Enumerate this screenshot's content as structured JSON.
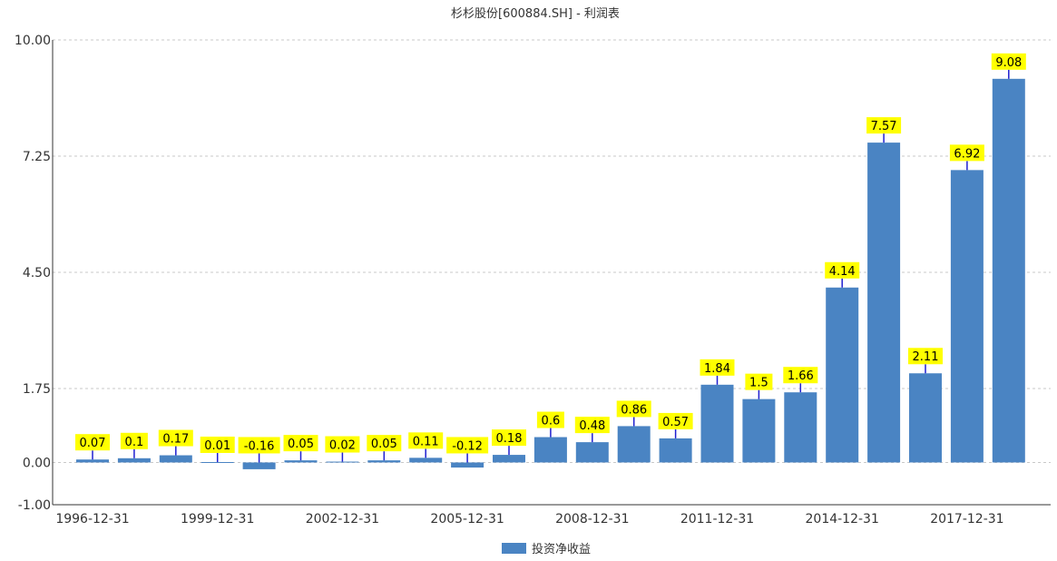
{
  "chart_data": {
    "type": "bar",
    "title": "杉杉股份[600884.SH] - 利润表",
    "series": [
      {
        "name": "投资净收益",
        "color": "#4a84c3",
        "values": [
          0.07,
          0.1,
          0.17,
          0.01,
          -0.16,
          0.05,
          0.02,
          0.05,
          0.11,
          -0.12,
          0.18,
          0.6,
          0.48,
          0.86,
          0.57,
          1.84,
          1.5,
          1.66,
          4.14,
          7.57,
          2.11,
          6.92,
          9.08
        ]
      }
    ],
    "x_tick_labels": [
      "1996-12-31",
      "1999-12-31",
      "2002-12-31",
      "2005-12-31",
      "2008-12-31",
      "2011-12-31",
      "2014-12-31",
      "2017-12-31"
    ],
    "x_tick_every": 3,
    "y_ticks": [
      "-1.00",
      "0.00",
      "1.75",
      "4.50",
      "7.25",
      "10.00"
    ],
    "y_tick_values": [
      -1,
      0,
      1.75,
      4.5,
      7.25,
      10
    ],
    "ylim": [
      -1,
      10
    ],
    "grid": true,
    "legend_position": "bottom-center",
    "label_background": "#ffff00"
  }
}
